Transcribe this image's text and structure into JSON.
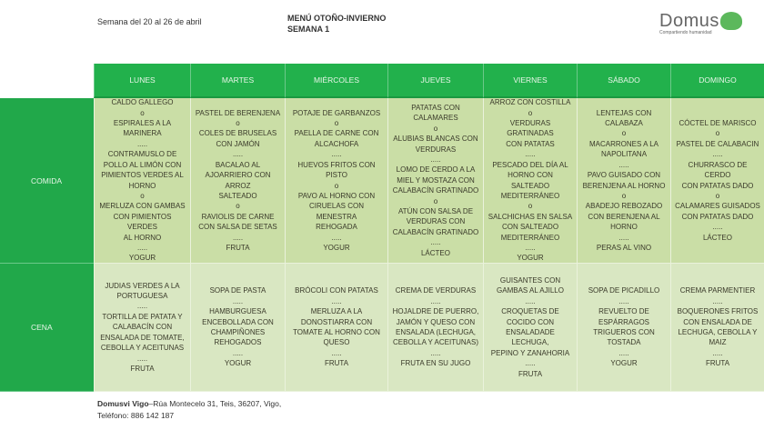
{
  "header": {
    "week": "Semana del 20 al 26 de abril",
    "title_line1": "MENÚ OTOÑO-INVIERNO",
    "title_line2": "SEMANA 1",
    "logo_brand": "Domus",
    "logo_tagline": "Compartiendo humanidad"
  },
  "days": [
    "LUNES",
    "MARTES",
    "MIÉRCOLES",
    "JUEVES",
    "VIERNES",
    "SÁBADO",
    "DOMINGO"
  ],
  "rows": [
    {
      "label": "COMIDA",
      "cells": [
        "CALDO GALLEGO\no\nESPIRALES A LA\nMARINERA\n.....\nCONTRAMUSLO DE\nPOLLO AL LIMÓN CON\nPIMIENTOS VERDES AL\nHORNO\no\nMERLUZA CON GAMBAS\nCON PIMIENTOS VERDES\nAL HORNO\n.....\nYOGUR",
        "PASTEL DE BERENJENA\no\nCOLES DE BRUSELAS\nCON JAMÓN\n.....\nBACALAO AL\nAJOARRIERO CON ARROZ\nSALTEADO\no\nRAVIOLIS DE CARNE\nCON SALSA DE SETAS\n.....\nFRUTA",
        "POTAJE DE GARBANZOS\no\nPAELLA DE CARNE CON\nALCACHOFA\n.....\nHUEVOS FRITOS CON\nPISTO\no\nPAVO AL HORNO CON\nCIRUELAS CON MENESTRA\nREHOGADA\n.....\nYOGUR",
        "PATATAS CON\nCALAMARES\no\nALUBIAS BLANCAS CON\nVERDURAS\n.....\nLOMO DE CERDO A LA\nMIEL Y MOSTAZA CON\nCALABACÍN GRATINADO\no\nATÚN CON SALSA DE\nVERDURAS CON\nCALABACÍN GRATINADO\n.....\nLÁCTEO",
        "ARROZ CON COSTILLA\no\nVERDURAS GRATINADAS\nCON PATATAS\n.....\nPESCADO DEL DÍA AL\nHORNO CON SALTEADO\nMEDITERRÁNEO\no\nSALCHICHAS EN SALSA\nCON SALTEADO\nMEDITERRÁNEO\n.....\nYOGUR",
        "LENTEJAS CON\nCALABAZA\no\nMACARRONES A LA\nNAPOLITANA\n.....\nPAVO GUISADO CON\nBERENJENA AL HORNO\no\nABADEJO REBOZADO\nCON BERENJENA AL\nHORNO\n.....\nPERAS AL VINO",
        "CÓCTEL DE MARISCO\no\nPASTEL DE CALABACIN\n.....\nCHURRASCO DE CERDO\nCON PATATAS DADO\no\nCALAMARES GUISADOS\nCON PATATAS DADO\n.....\nLÁCTEO"
      ]
    },
    {
      "label": "CENA",
      "cells": [
        "JUDIAS VERDES A LA\nPORTUGUESA\n.....\nTORTILLA DE PATATA Y\nCALABACÍN CON\nENSALADA DE TOMATE,\nCEBOLLA Y ACEITUNAS\n.....\nFRUTA",
        "SOPA DE PASTA\n.....\nHAMBURGUESA\nENCEBOLLADA CON\nCHAMPIÑONES\nREHOGADOS\n.....\nYOGUR",
        "BRÓCOLI CON PATATAS\n.....\nMERLUZA A LA\nDONOSTIARRA CON\nTOMATE AL HORNO CON\nQUESO\n.....\nFRUTA",
        "CREMA DE VERDURAS\n.....\nHOJALDRE DE PUERRO,\nJAMÓN Y QUESO CON\nENSALADA (LECHUGA,\nCEBOLLA Y ACEITUNAS)\n.....\nFRUTA EN SU JUGO",
        "GUISANTES CON\nGAMBAS AL AJILLO\n.....\nCROQUETAS DE\nCOCIDO CON\nENSALADADE LECHUGA,\nPEPINO Y ZANAHORIA\n.....\nFRUTA",
        "SOPA DE PICADILLO\n.....\nREVUELTO DE\nESPÁRRAGOS\nTRIGUEROS CON\nTOSTADA\n.....\nYOGUR",
        "CREMA PARMENTIER\n.....\nBOQUERONES FRITOS\nCON ENSALADA DE\nLECHUGA, CEBOLLA Y\nMAIZ\n.....\nFRUTA"
      ]
    }
  ],
  "footer": {
    "name": "Domusvi Vigo",
    "address": "–Rúa Montecelo 31, Teis, 36207, Vigo,",
    "phone": "Teléfono: 886 142 187"
  },
  "colors": {
    "header_green": "#22b14c",
    "lunch_cell": "#cadea6",
    "dinner_cell": "#d9e7c2"
  }
}
